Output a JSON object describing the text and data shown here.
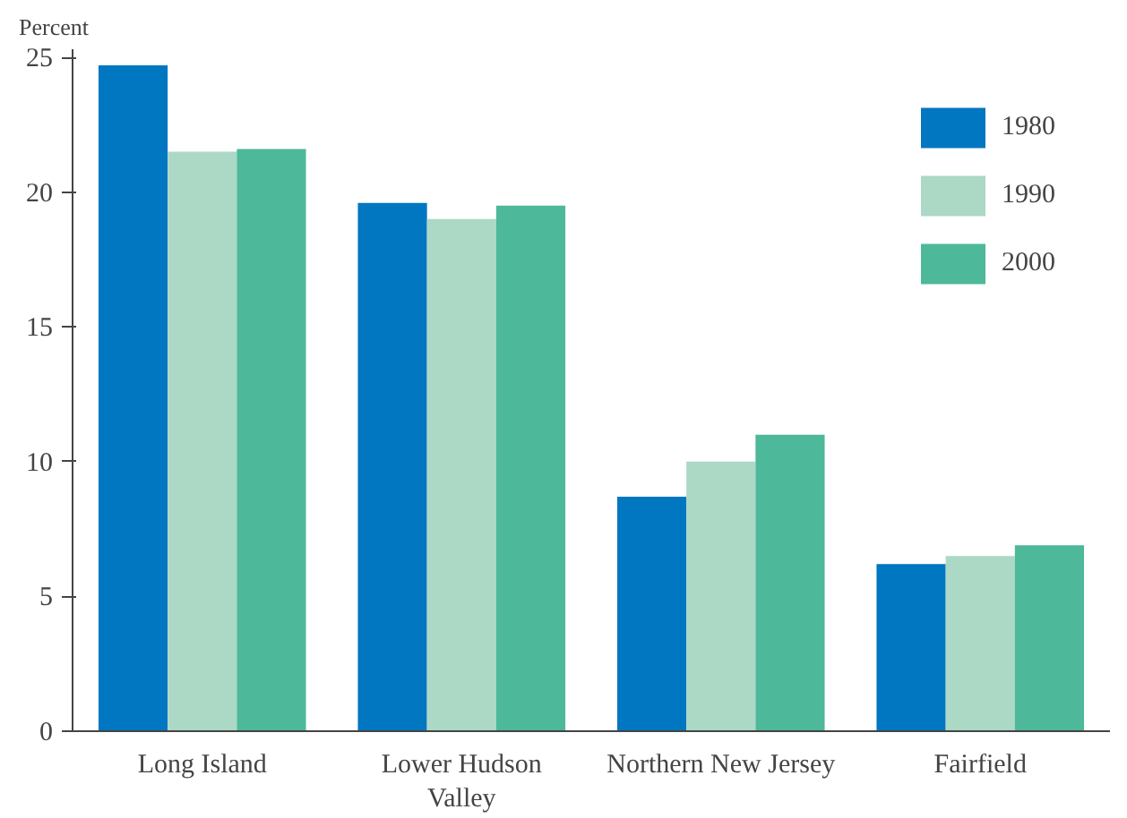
{
  "chart_data": {
    "type": "bar",
    "ylabel": "Percent",
    "categories": [
      "Long Island",
      "Lower Hudson\nValley",
      "Northern New Jersey",
      "Fairfield"
    ],
    "series": [
      {
        "name": "1980",
        "color": "#0077c0",
        "values": [
          24.7,
          19.6,
          8.7,
          6.2
        ]
      },
      {
        "name": "1990",
        "color": "#acd8c6",
        "values": [
          21.5,
          19.0,
          10.0,
          6.5
        ]
      },
      {
        "name": "2000",
        "color": "#4db89a",
        "values": [
          21.6,
          19.5,
          11.0,
          6.9
        ]
      }
    ],
    "ylim": [
      0,
      25.3
    ],
    "yticks": [
      0,
      5,
      10,
      15,
      20,
      25
    ],
    "grid": false,
    "legend": "top right"
  }
}
